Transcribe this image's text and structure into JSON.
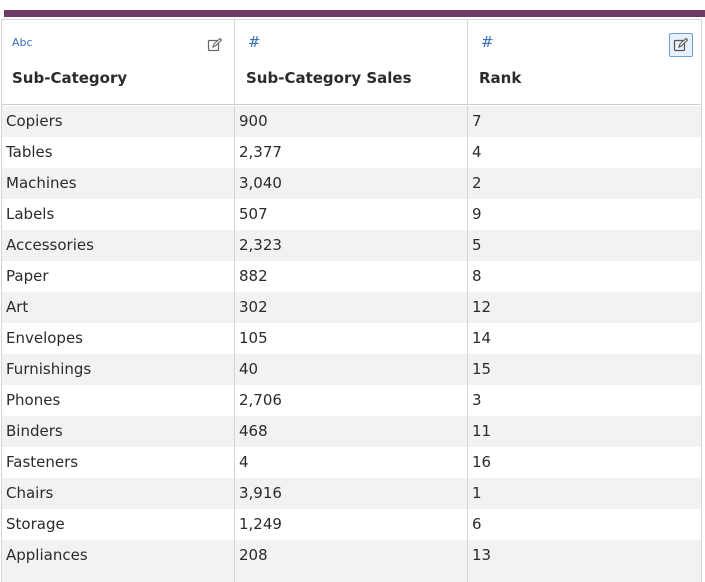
{
  "colors": {
    "accent_bar": "#6e3b66",
    "type_icon": "#3b6fb6",
    "stripe": "#f2f2f2"
  },
  "columns": [
    {
      "type_label": "Abc",
      "type_icon": "abc-type",
      "title": "Sub-Category",
      "edit_icon": "edit-icon"
    },
    {
      "type_label": "#",
      "type_icon": "number-type",
      "title": "Sub-Category Sales"
    },
    {
      "type_label": "#",
      "type_icon": "number-type",
      "title": "Rank",
      "edit_icon": "edit-icon-selected"
    }
  ],
  "rows": [
    [
      "Copiers",
      "900",
      "7"
    ],
    [
      "Tables",
      "2,377",
      "4"
    ],
    [
      "Machines",
      "3,040",
      "2"
    ],
    [
      "Labels",
      "507",
      "9"
    ],
    [
      "Accessories",
      "2,323",
      "5"
    ],
    [
      "Paper",
      "882",
      "8"
    ],
    [
      "Art",
      "302",
      "12"
    ],
    [
      "Envelopes",
      "105",
      "14"
    ],
    [
      "Furnishings",
      "40",
      "15"
    ],
    [
      "Phones",
      "2,706",
      "3"
    ],
    [
      "Binders",
      "468",
      "11"
    ],
    [
      "Fasteners",
      "4",
      "16"
    ],
    [
      "Chairs",
      "3,916",
      "1"
    ],
    [
      "Storage",
      "1,249",
      "6"
    ],
    [
      "Appliances",
      "208",
      "13"
    ]
  ]
}
